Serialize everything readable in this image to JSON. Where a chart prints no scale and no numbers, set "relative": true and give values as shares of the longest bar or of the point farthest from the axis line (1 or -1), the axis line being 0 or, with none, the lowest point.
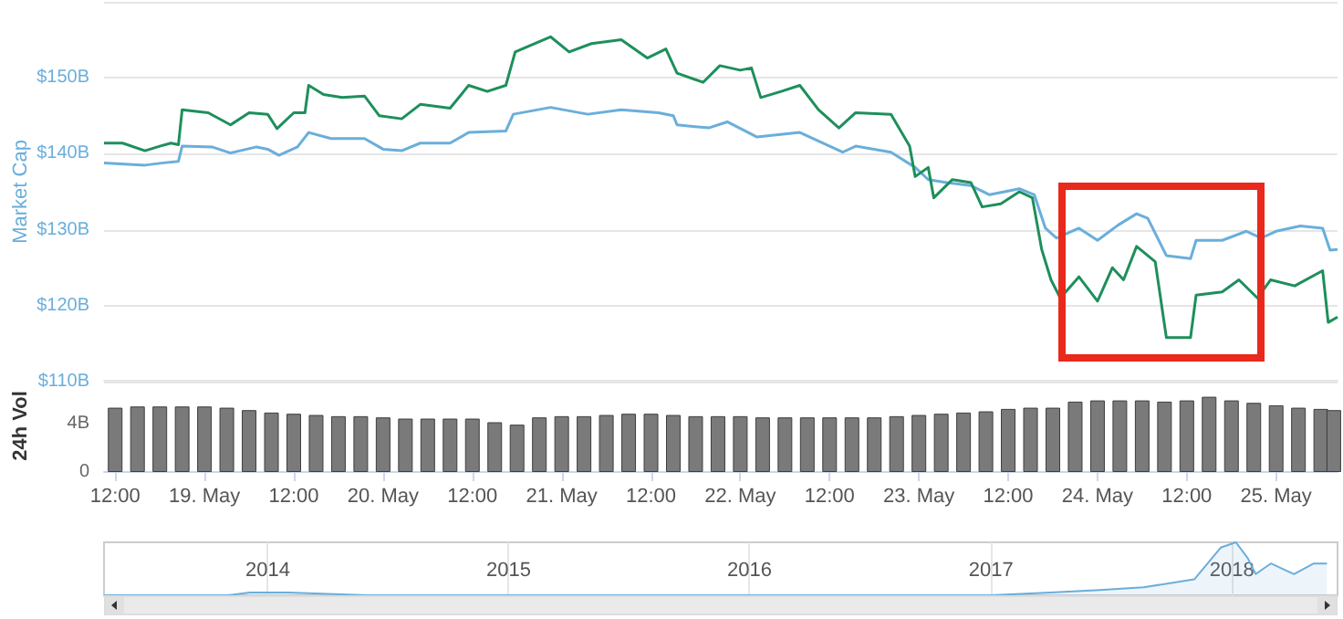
{
  "chart_data": [
    {
      "type": "line",
      "ylabel": "Market Cap",
      "xlim": [
        "2018-05-18T10:30",
        "2018-05-25T08:15"
      ],
      "ylim": [
        110,
        160
      ],
      "yticks": [
        {
          "value": 110,
          "label": "$110B"
        },
        {
          "value": 120,
          "label": "$120B"
        },
        {
          "value": 130,
          "label": "$130B"
        },
        {
          "value": 140,
          "label": "$140B"
        },
        {
          "value": 150,
          "label": "$150B"
        }
      ],
      "grid": "y",
      "tick_labels": "y",
      "marker": "none",
      "line_style": "solid",
      "series": [
        {
          "color": "#6aaedb",
          "x": [
            "2018-05-18T10:30",
            "2018-05-18T16:00",
            "2018-05-18T18:30",
            "2018-05-18T20:30",
            "2018-05-18T21:00",
            "2018-05-19T01:00",
            "2018-05-19T03:30",
            "2018-05-19T07:00",
            "2018-05-19T08:30",
            "2018-05-19T10:00",
            "2018-05-19T12:30",
            "2018-05-19T14:00",
            "2018-05-19T17:00",
            "2018-05-19T21:30",
            "2018-05-20T00:00",
            "2018-05-20T02:30",
            "2018-05-20T05:00",
            "2018-05-20T09:00",
            "2018-05-20T11:30",
            "2018-05-20T16:30",
            "2018-05-20T17:30",
            "2018-05-20T22:30",
            "2018-05-21T03:30",
            "2018-05-21T08:00",
            "2018-05-21T13:00",
            "2018-05-21T15:00",
            "2018-05-21T15:30",
            "2018-05-21T19:45",
            "2018-05-21T22:15",
            "2018-05-22T02:15",
            "2018-05-22T08:00",
            "2018-05-22T13:45",
            "2018-05-22T15:30",
            "2018-05-22T20:15",
            "2018-05-22T23:30",
            "2018-05-23T01:15",
            "2018-05-23T03:45",
            "2018-05-23T07:00",
            "2018-05-23T09:30",
            "2018-05-23T13:30",
            "2018-05-23T15:30",
            "2018-05-23T17:00",
            "2018-05-23T18:30",
            "2018-05-23T21:30",
            "2018-05-24T00:00",
            "2018-05-24T02:45",
            "2018-05-24T05:15",
            "2018-05-24T06:45",
            "2018-05-24T09:15",
            "2018-05-24T12:30",
            "2018-05-24T13:15",
            "2018-05-24T16:45",
            "2018-05-24T20:00",
            "2018-05-24T22:00",
            "2018-05-25T00:00",
            "2018-05-25T03:15",
            "2018-05-25T06:15",
            "2018-05-25T07:15",
            "2018-05-25T08:15"
          ],
          "values": [
            138.8,
            138.5,
            138.8,
            139.0,
            141.0,
            140.9,
            140.1,
            140.9,
            140.6,
            139.8,
            140.9,
            142.8,
            142.0,
            142.0,
            140.6,
            140.4,
            141.4,
            141.4,
            142.8,
            143.0,
            145.2,
            146.1,
            145.2,
            145.8,
            145.4,
            145.0,
            143.8,
            143.4,
            144.2,
            142.2,
            142.8,
            140.2,
            141.0,
            140.2,
            138.2,
            136.6,
            136.2,
            135.8,
            134.6,
            135.4,
            134.6,
            130.2,
            128.9,
            130.2,
            128.6,
            130.6,
            132.1,
            131.5,
            126.6,
            126.2,
            128.6,
            128.6,
            129.8,
            128.9,
            129.8,
            130.5,
            130.2,
            127.3,
            127.4
          ]
        },
        {
          "color": "#1e8f5b",
          "x": [
            "2018-05-18T10:30",
            "2018-05-18T13:00",
            "2018-05-18T16:00",
            "2018-05-18T18:00",
            "2018-05-18T19:30",
            "2018-05-18T20:30",
            "2018-05-18T21:00",
            "2018-05-19T00:30",
            "2018-05-19T03:30",
            "2018-05-19T06:00",
            "2018-05-19T08:30",
            "2018-05-19T09:45",
            "2018-05-19T12:00",
            "2018-05-19T13:30",
            "2018-05-19T14:00",
            "2018-05-19T16:00",
            "2018-05-19T18:30",
            "2018-05-19T21:30",
            "2018-05-19T23:30",
            "2018-05-20T02:30",
            "2018-05-20T05:00",
            "2018-05-20T09:00",
            "2018-05-20T11:30",
            "2018-05-20T14:00",
            "2018-05-20T16:30",
            "2018-05-20T17:45",
            "2018-05-20T22:30",
            "2018-05-21T01:00",
            "2018-05-21T04:00",
            "2018-05-21T08:00",
            "2018-05-21T11:30",
            "2018-05-21T14:00",
            "2018-05-21T15:30",
            "2018-05-21T19:00",
            "2018-05-21T21:15",
            "2018-05-22T00:00",
            "2018-05-22T01:30",
            "2018-05-22T02:45",
            "2018-05-22T05:30",
            "2018-05-22T08:00",
            "2018-05-22T10:30",
            "2018-05-22T13:15",
            "2018-05-22T15:30",
            "2018-05-22T20:15",
            "2018-05-22T22:45",
            "2018-05-22T23:30",
            "2018-05-23T01:15",
            "2018-05-23T02:00",
            "2018-05-23T04:30",
            "2018-05-23T07:00",
            "2018-05-23T08:30",
            "2018-05-23T11:00",
            "2018-05-23T13:30",
            "2018-05-23T15:15",
            "2018-05-23T16:30",
            "2018-05-23T17:45",
            "2018-05-23T19:00",
            "2018-05-23T21:30",
            "2018-05-24T00:00",
            "2018-05-24T02:00",
            "2018-05-24T03:30",
            "2018-05-24T05:15",
            "2018-05-24T07:45",
            "2018-05-24T09:15",
            "2018-05-24T12:30",
            "2018-05-24T13:15",
            "2018-05-24T16:45",
            "2018-05-24T19:00",
            "2018-05-24T21:30",
            "2018-05-24T23:15",
            "2018-05-25T02:30",
            "2018-05-25T06:15",
            "2018-05-25T07:00",
            "2018-05-25T08:15"
          ],
          "values": [
            141.4,
            141.4,
            140.4,
            141.0,
            141.4,
            141.2,
            145.8,
            145.4,
            143.8,
            145.4,
            145.2,
            143.3,
            145.4,
            145.4,
            149.0,
            147.8,
            147.4,
            147.6,
            145.0,
            144.6,
            146.5,
            146.0,
            149.0,
            148.2,
            149.0,
            153.4,
            155.4,
            153.4,
            154.5,
            155.0,
            152.6,
            153.8,
            150.6,
            149.4,
            151.6,
            151.0,
            151.3,
            147.4,
            148.2,
            149.0,
            145.8,
            143.4,
            145.4,
            145.2,
            141.0,
            137.0,
            138.2,
            134.2,
            136.6,
            136.2,
            133.0,
            133.4,
            135.0,
            134.2,
            127.4,
            123.4,
            121.0,
            123.8,
            120.6,
            125.0,
            123.4,
            127.8,
            125.8,
            115.8,
            115.8,
            121.4,
            121.8,
            123.4,
            121.0,
            123.4,
            122.6,
            124.6,
            117.8,
            118.5
          ]
        }
      ]
    },
    {
      "type": "bar",
      "ylabel": "24h Vol",
      "color": "#7a7a7a",
      "xlim": [
        "2018-05-18T10:30",
        "2018-05-25T08:15"
      ],
      "ylim": [
        0,
        7.6
      ],
      "yticks": [
        0,
        {
          "value": 4,
          "label": "4B"
        }
      ],
      "xticks": [
        {
          "value": "2018-05-18T12:00",
          "label": "12:00"
        },
        {
          "value": "2018-05-19T00:00",
          "label": "19. May"
        },
        {
          "value": "2018-05-19T12:00",
          "label": "12:00"
        },
        {
          "value": "2018-05-20T00:00",
          "label": "20. May"
        },
        {
          "value": "2018-05-20T12:00",
          "label": "12:00"
        },
        {
          "value": "2018-05-21T00:00",
          "label": "21. May"
        },
        {
          "value": "2018-05-21T12:00",
          "label": "12:00"
        },
        {
          "value": "2018-05-22T00:00",
          "label": "22. May"
        },
        {
          "value": "2018-05-22T12:00",
          "label": "12:00"
        },
        {
          "value": "2018-05-23T00:00",
          "label": "23. May"
        },
        {
          "value": "2018-05-23T12:00",
          "label": "12:00"
        },
        {
          "value": "2018-05-24T00:00",
          "label": "24. May"
        },
        {
          "value": "2018-05-24T12:00",
          "label": "12:00"
        },
        {
          "value": "2018-05-25T00:00",
          "label": "25. May"
        }
      ],
      "x": [
        "2018-05-18T12:00",
        "2018-05-18T15:00",
        "2018-05-18T18:00",
        "2018-05-18T21:00",
        "2018-05-19T00:00",
        "2018-05-19T03:00",
        "2018-05-19T06:00",
        "2018-05-19T09:00",
        "2018-05-19T12:00",
        "2018-05-19T15:00",
        "2018-05-19T18:00",
        "2018-05-19T21:00",
        "2018-05-20T00:00",
        "2018-05-20T03:00",
        "2018-05-20T06:00",
        "2018-05-20T09:00",
        "2018-05-20T12:00",
        "2018-05-20T15:00",
        "2018-05-20T18:00",
        "2018-05-20T21:00",
        "2018-05-21T00:00",
        "2018-05-21T03:00",
        "2018-05-21T06:00",
        "2018-05-21T09:00",
        "2018-05-21T12:00",
        "2018-05-21T15:00",
        "2018-05-21T18:00",
        "2018-05-21T21:00",
        "2018-05-22T00:00",
        "2018-05-22T03:00",
        "2018-05-22T06:00",
        "2018-05-22T09:00",
        "2018-05-22T12:00",
        "2018-05-22T15:00",
        "2018-05-22T18:00",
        "2018-05-22T21:00",
        "2018-05-23T00:00",
        "2018-05-23T03:00",
        "2018-05-23T06:00",
        "2018-05-23T09:00",
        "2018-05-23T12:00",
        "2018-05-23T15:00",
        "2018-05-23T18:00",
        "2018-05-23T21:00",
        "2018-05-24T00:00",
        "2018-05-24T03:00",
        "2018-05-24T06:00",
        "2018-05-24T09:00",
        "2018-05-24T12:00",
        "2018-05-24T15:00",
        "2018-05-24T18:00",
        "2018-05-24T21:00",
        "2018-05-25T00:00",
        "2018-05-25T03:00",
        "2018-05-25T06:00",
        "2018-05-25T07:45"
      ],
      "values": [
        5.3,
        5.4,
        5.4,
        5.4,
        5.4,
        5.3,
        5.1,
        4.9,
        4.8,
        4.7,
        4.6,
        4.6,
        4.5,
        4.4,
        4.4,
        4.4,
        4.4,
        4.1,
        3.9,
        4.5,
        4.6,
        4.6,
        4.7,
        4.8,
        4.8,
        4.7,
        4.6,
        4.6,
        4.6,
        4.5,
        4.5,
        4.5,
        4.5,
        4.5,
        4.5,
        4.6,
        4.7,
        4.8,
        4.9,
        5.0,
        5.2,
        5.3,
        5.3,
        5.8,
        5.9,
        5.9,
        5.9,
        5.8,
        5.9,
        6.2,
        5.9,
        5.7,
        5.5,
        5.3,
        5.2,
        5.1
      ]
    },
    {
      "type": "area",
      "relative": true,
      "color": "#6aaedb",
      "xlim": [
        "2013-04-28",
        "2018-06-10"
      ],
      "xticks": [
        {
          "value": "2014-01-01",
          "label": "2014"
        },
        {
          "value": "2015-01-01",
          "label": "2015"
        },
        {
          "value": "2016-01-01",
          "label": "2016"
        },
        {
          "value": "2017-01-01",
          "label": "2017"
        },
        {
          "value": "2018-01-01",
          "label": "2018"
        }
      ],
      "grid": "x",
      "tick_labels": "x",
      "marker": "none",
      "x": [
        "2013-04-28",
        "2013-11-01",
        "2013-12-05",
        "2014-02-01",
        "2014-06-01",
        "2015-01-15",
        "2015-06-01",
        "2016-01-01",
        "2016-06-15",
        "2017-01-01",
        "2017-04-01",
        "2017-06-15",
        "2017-08-20",
        "2017-11-05",
        "2017-12-15",
        "2018-01-07",
        "2018-01-25",
        "2018-02-06",
        "2018-03-01",
        "2018-04-05",
        "2018-05-05",
        "2018-05-25"
      ],
      "values": [
        0,
        0,
        0.05,
        0.05,
        0,
        0,
        0,
        0,
        0,
        0,
        0.05,
        0.1,
        0.15,
        0.3,
        0.9,
        1,
        0.7,
        0.4,
        0.6,
        0.4,
        0.6,
        0.6
      ]
    }
  ]
}
